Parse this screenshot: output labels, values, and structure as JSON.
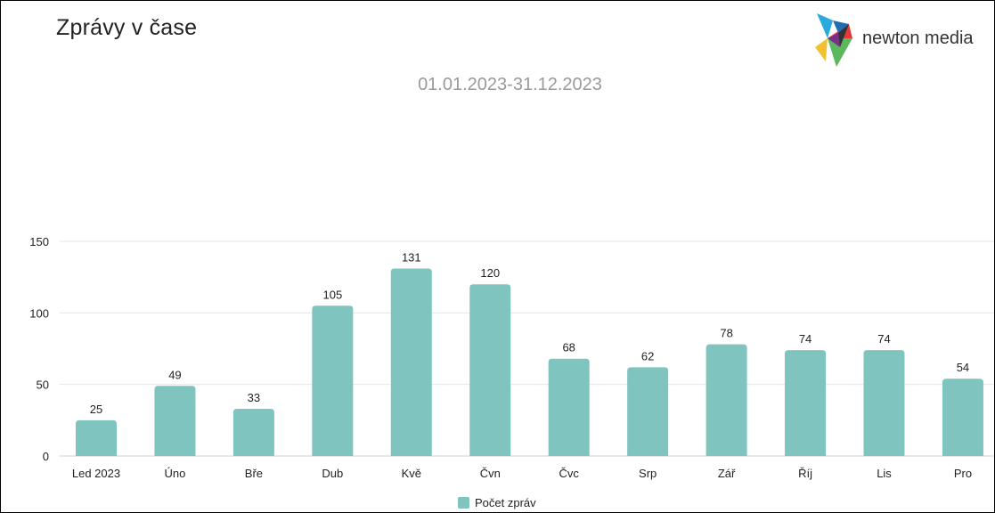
{
  "header": {
    "title": "Zprávy v čase",
    "date_range": "01.01.2023-31.12.2023"
  },
  "logo": {
    "text": "newton media",
    "icon": "newton-media-logo-icon"
  },
  "colors": {
    "bar": "#7fc4bf",
    "grid": "#e6e6e6",
    "text": "#222222",
    "subtitle": "#9a9a9a"
  },
  "chart_data": {
    "type": "bar",
    "categories": [
      "Led 2023",
      "Úno",
      "Bře",
      "Dub",
      "Kvě",
      "Čvn",
      "Čvc",
      "Srp",
      "Zář",
      "Říj",
      "Lis",
      "Pro"
    ],
    "series": [
      {
        "name": "Počet zpráv",
        "values": [
          25,
          49,
          33,
          105,
          131,
          120,
          68,
          62,
          78,
          74,
          74,
          54
        ]
      }
    ],
    "ylim": [
      0,
      150
    ],
    "yticks": [
      0,
      50,
      100,
      150
    ],
    "data_labels": true,
    "grid": "horizontal",
    "legend": "bottom-center"
  }
}
